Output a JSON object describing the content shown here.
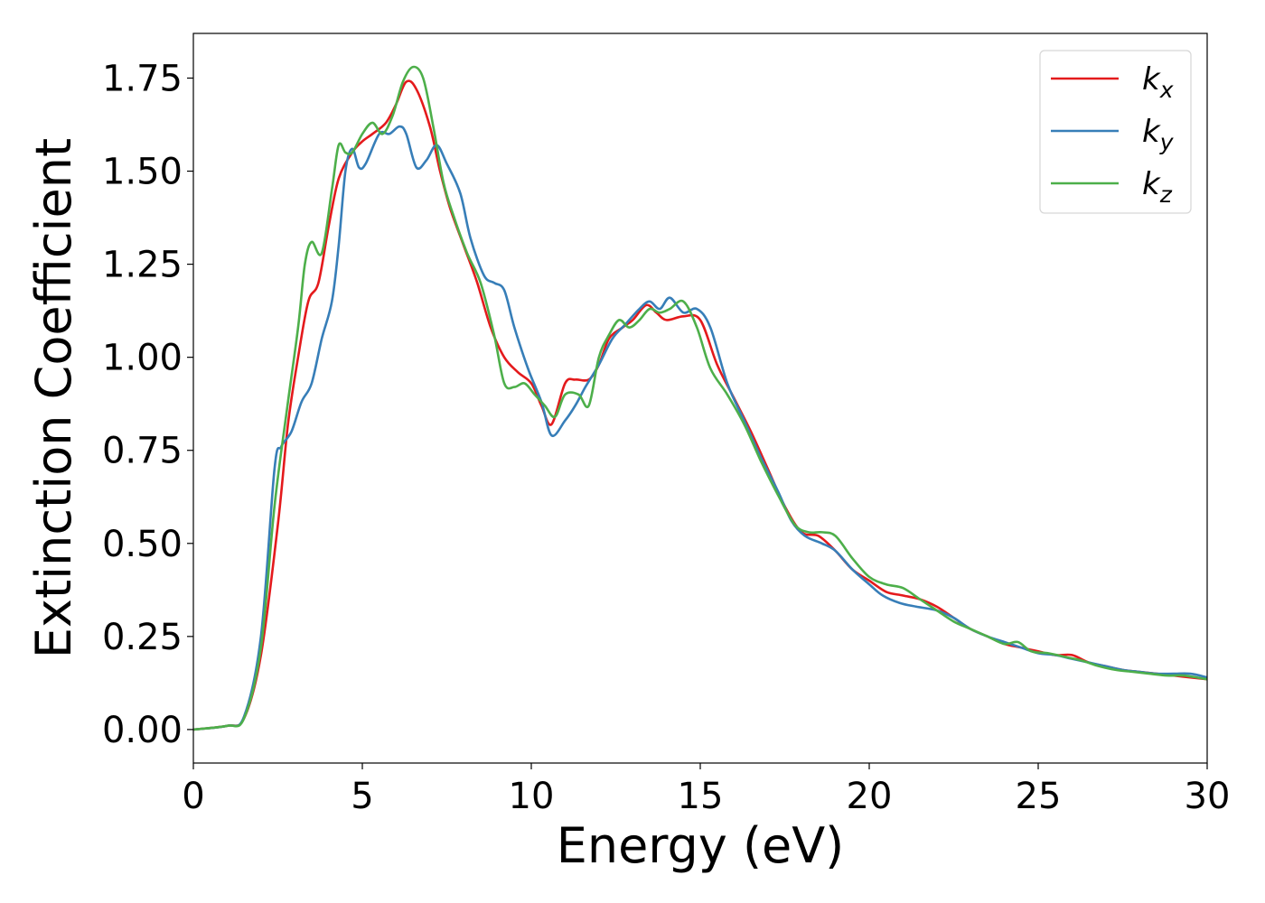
{
  "chart_data": {
    "type": "line",
    "title": "",
    "xlabel": "Energy (eV)",
    "ylabel": "Extinction Coefficient",
    "xlim": [
      0,
      30
    ],
    "ylim": [
      -0.09,
      1.87
    ],
    "xticks": [
      0,
      5,
      10,
      15,
      20,
      25,
      30
    ],
    "yticks": [
      0.0,
      0.25,
      0.5,
      0.75,
      1.0,
      1.25,
      1.5,
      1.75
    ],
    "ytick_labels": [
      "0.00",
      "0.25",
      "0.50",
      "0.75",
      "1.00",
      "1.25",
      "1.50",
      "1.75"
    ],
    "grid": false,
    "legend_position": "top-right",
    "series": [
      {
        "name": "k",
        "subscript": "x",
        "color": "#e41a1c",
        "points": [
          [
            0,
            0
          ],
          [
            1,
            0.01
          ],
          [
            1.5,
            0.03
          ],
          [
            2,
            0.2
          ],
          [
            2.5,
            0.55
          ],
          [
            2.8,
            0.82
          ],
          [
            3.1,
            1.0
          ],
          [
            3.4,
            1.15
          ],
          [
            3.7,
            1.2
          ],
          [
            4.0,
            1.35
          ],
          [
            4.3,
            1.48
          ],
          [
            4.7,
            1.55
          ],
          [
            5.0,
            1.58
          ],
          [
            5.3,
            1.6
          ],
          [
            5.7,
            1.63
          ],
          [
            6.0,
            1.68
          ],
          [
            6.3,
            1.74
          ],
          [
            6.6,
            1.72
          ],
          [
            7.0,
            1.62
          ],
          [
            7.3,
            1.5
          ],
          [
            7.6,
            1.4
          ],
          [
            8.0,
            1.3
          ],
          [
            8.4,
            1.2
          ],
          [
            8.8,
            1.08
          ],
          [
            9.2,
            1.0
          ],
          [
            9.6,
            0.96
          ],
          [
            10.0,
            0.93
          ],
          [
            10.3,
            0.87
          ],
          [
            10.6,
            0.82
          ],
          [
            11.0,
            0.93
          ],
          [
            11.3,
            0.94
          ],
          [
            11.7,
            0.94
          ],
          [
            12.0,
            0.98
          ],
          [
            12.3,
            1.05
          ],
          [
            12.7,
            1.08
          ],
          [
            13.0,
            1.1
          ],
          [
            13.4,
            1.14
          ],
          [
            13.7,
            1.12
          ],
          [
            14.0,
            1.1
          ],
          [
            14.5,
            1.11
          ],
          [
            15.0,
            1.1
          ],
          [
            15.5,
            0.98
          ],
          [
            16.0,
            0.89
          ],
          [
            16.5,
            0.8
          ],
          [
            17.0,
            0.7
          ],
          [
            17.5,
            0.6
          ],
          [
            18.0,
            0.53
          ],
          [
            18.5,
            0.52
          ],
          [
            19.0,
            0.48
          ],
          [
            19.5,
            0.43
          ],
          [
            20.0,
            0.4
          ],
          [
            20.5,
            0.37
          ],
          [
            21.0,
            0.36
          ],
          [
            21.5,
            0.35
          ],
          [
            22.0,
            0.33
          ],
          [
            22.5,
            0.3
          ],
          [
            23.0,
            0.27
          ],
          [
            23.5,
            0.25
          ],
          [
            24.0,
            0.23
          ],
          [
            24.5,
            0.22
          ],
          [
            25.0,
            0.21
          ],
          [
            25.5,
            0.2
          ],
          [
            26.0,
            0.2
          ],
          [
            26.5,
            0.18
          ],
          [
            27.0,
            0.17
          ],
          [
            27.5,
            0.16
          ],
          [
            28.0,
            0.155
          ],
          [
            28.5,
            0.15
          ],
          [
            29.0,
            0.145
          ],
          [
            29.5,
            0.14
          ],
          [
            30.0,
            0.135
          ]
        ]
      },
      {
        "name": "k",
        "subscript": "y",
        "color": "#377eb8",
        "points": [
          [
            0,
            0
          ],
          [
            1,
            0.01
          ],
          [
            1.5,
            0.035
          ],
          [
            2,
            0.25
          ],
          [
            2.4,
            0.7
          ],
          [
            2.6,
            0.76
          ],
          [
            2.9,
            0.8
          ],
          [
            3.2,
            0.88
          ],
          [
            3.5,
            0.93
          ],
          [
            3.8,
            1.05
          ],
          [
            4.1,
            1.15
          ],
          [
            4.3,
            1.3
          ],
          [
            4.5,
            1.5
          ],
          [
            4.7,
            1.56
          ],
          [
            4.9,
            1.51
          ],
          [
            5.1,
            1.52
          ],
          [
            5.5,
            1.6
          ],
          [
            5.8,
            1.6
          ],
          [
            6.1,
            1.62
          ],
          [
            6.3,
            1.6
          ],
          [
            6.6,
            1.51
          ],
          [
            6.9,
            1.53
          ],
          [
            7.2,
            1.57
          ],
          [
            7.5,
            1.52
          ],
          [
            7.9,
            1.44
          ],
          [
            8.2,
            1.32
          ],
          [
            8.6,
            1.22
          ],
          [
            8.9,
            1.2
          ],
          [
            9.2,
            1.18
          ],
          [
            9.5,
            1.08
          ],
          [
            9.9,
            0.97
          ],
          [
            10.3,
            0.88
          ],
          [
            10.6,
            0.79
          ],
          [
            11.0,
            0.83
          ],
          [
            11.3,
            0.87
          ],
          [
            11.6,
            0.92
          ],
          [
            12.0,
            0.98
          ],
          [
            12.4,
            1.05
          ],
          [
            12.8,
            1.09
          ],
          [
            13.2,
            1.13
          ],
          [
            13.5,
            1.15
          ],
          [
            13.8,
            1.13
          ],
          [
            14.1,
            1.16
          ],
          [
            14.5,
            1.12
          ],
          [
            14.9,
            1.13
          ],
          [
            15.3,
            1.08
          ],
          [
            15.8,
            0.93
          ],
          [
            16.3,
            0.83
          ],
          [
            16.8,
            0.73
          ],
          [
            17.3,
            0.64
          ],
          [
            17.7,
            0.56
          ],
          [
            18.1,
            0.52
          ],
          [
            18.6,
            0.5
          ],
          [
            19.0,
            0.48
          ],
          [
            19.5,
            0.43
          ],
          [
            20.0,
            0.39
          ],
          [
            20.4,
            0.36
          ],
          [
            20.9,
            0.34
          ],
          [
            21.4,
            0.33
          ],
          [
            22.0,
            0.32
          ],
          [
            22.5,
            0.3
          ],
          [
            23.0,
            0.27
          ],
          [
            23.5,
            0.25
          ],
          [
            24.0,
            0.235
          ],
          [
            24.5,
            0.22
          ],
          [
            25.0,
            0.205
          ],
          [
            25.5,
            0.2
          ],
          [
            26.0,
            0.19
          ],
          [
            26.5,
            0.18
          ],
          [
            27.0,
            0.17
          ],
          [
            27.5,
            0.16
          ],
          [
            28.0,
            0.155
          ],
          [
            28.5,
            0.15
          ],
          [
            29.0,
            0.15
          ],
          [
            29.5,
            0.15
          ],
          [
            30.0,
            0.14
          ]
        ]
      },
      {
        "name": "k",
        "subscript": "z",
        "color": "#4daf4a",
        "points": [
          [
            0,
            0
          ],
          [
            1,
            0.01
          ],
          [
            1.5,
            0.03
          ],
          [
            2,
            0.22
          ],
          [
            2.4,
            0.6
          ],
          [
            2.8,
            0.88
          ],
          [
            3.1,
            1.08
          ],
          [
            3.3,
            1.25
          ],
          [
            3.5,
            1.31
          ],
          [
            3.8,
            1.28
          ],
          [
            4.1,
            1.45
          ],
          [
            4.3,
            1.57
          ],
          [
            4.5,
            1.55
          ],
          [
            4.7,
            1.55
          ],
          [
            5.0,
            1.6
          ],
          [
            5.3,
            1.63
          ],
          [
            5.6,
            1.6
          ],
          [
            5.9,
            1.65
          ],
          [
            6.2,
            1.74
          ],
          [
            6.5,
            1.78
          ],
          [
            6.8,
            1.75
          ],
          [
            7.1,
            1.62
          ],
          [
            7.4,
            1.47
          ],
          [
            7.7,
            1.38
          ],
          [
            8.1,
            1.28
          ],
          [
            8.5,
            1.2
          ],
          [
            8.9,
            1.06
          ],
          [
            9.2,
            0.93
          ],
          [
            9.5,
            0.92
          ],
          [
            9.8,
            0.93
          ],
          [
            10.1,
            0.9
          ],
          [
            10.4,
            0.87
          ],
          [
            10.7,
            0.84
          ],
          [
            11.0,
            0.9
          ],
          [
            11.4,
            0.9
          ],
          [
            11.7,
            0.87
          ],
          [
            12.0,
            1.0
          ],
          [
            12.3,
            1.06
          ],
          [
            12.6,
            1.1
          ],
          [
            12.9,
            1.08
          ],
          [
            13.2,
            1.1
          ],
          [
            13.5,
            1.13
          ],
          [
            13.8,
            1.12
          ],
          [
            14.1,
            1.13
          ],
          [
            14.5,
            1.15
          ],
          [
            14.9,
            1.08
          ],
          [
            15.3,
            0.97
          ],
          [
            15.8,
            0.9
          ],
          [
            16.3,
            0.82
          ],
          [
            16.8,
            0.72
          ],
          [
            17.3,
            0.63
          ],
          [
            17.8,
            0.55
          ],
          [
            18.2,
            0.53
          ],
          [
            18.6,
            0.53
          ],
          [
            19.0,
            0.52
          ],
          [
            19.5,
            0.46
          ],
          [
            20.0,
            0.41
          ],
          [
            20.5,
            0.39
          ],
          [
            21.0,
            0.38
          ],
          [
            21.5,
            0.35
          ],
          [
            22.0,
            0.32
          ],
          [
            22.5,
            0.29
          ],
          [
            23.0,
            0.27
          ],
          [
            23.5,
            0.25
          ],
          [
            24.0,
            0.23
          ],
          [
            24.4,
            0.235
          ],
          [
            24.8,
            0.21
          ],
          [
            25.3,
            0.205
          ],
          [
            25.8,
            0.195
          ],
          [
            26.3,
            0.185
          ],
          [
            26.8,
            0.17
          ],
          [
            27.3,
            0.16
          ],
          [
            27.8,
            0.155
          ],
          [
            28.3,
            0.15
          ],
          [
            28.8,
            0.145
          ],
          [
            29.3,
            0.145
          ],
          [
            30.0,
            0.135
          ]
        ]
      }
    ]
  }
}
